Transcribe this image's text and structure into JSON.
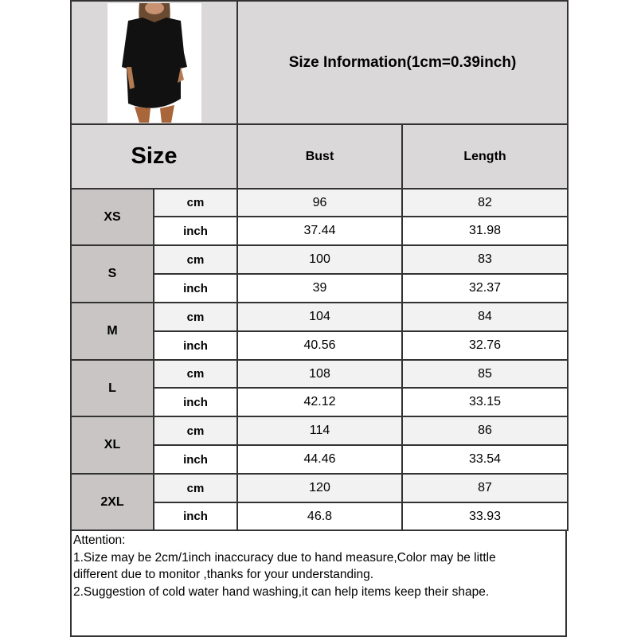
{
  "header": {
    "title": "Size Information(1cm=0.39inch)",
    "product_image": "black-oversized-tshirt-dress-photo"
  },
  "columns": {
    "size": "Size",
    "bust": "Bust",
    "length": "Length"
  },
  "rows": [
    {
      "size": "XS",
      "cm_label": "cm",
      "inch_label": "inch",
      "bust_cm": "96",
      "length_cm": "82",
      "bust_inch": "37.44",
      "length_inch": "31.98"
    },
    {
      "size": "S",
      "cm_label": "cm",
      "inch_label": "inch",
      "bust_cm": "100",
      "length_cm": "83",
      "bust_inch": "39",
      "length_inch": "32.37"
    },
    {
      "size": "M",
      "cm_label": "cm",
      "inch_label": "inch",
      "bust_cm": "104",
      "length_cm": "84",
      "bust_inch": "40.56",
      "length_inch": "32.76"
    },
    {
      "size": "L",
      "cm_label": "cm",
      "inch_label": "inch",
      "bust_cm": "108",
      "length_cm": "85",
      "bust_inch": "42.12",
      "length_inch": "33.15"
    },
    {
      "size": "XL",
      "cm_label": "cm",
      "inch_label": "inch",
      "bust_cm": "114",
      "length_cm": "86",
      "bust_inch": "44.46",
      "length_inch": "33.54"
    },
    {
      "size": "2XL",
      "cm_label": "cm",
      "inch_label": "inch",
      "bust_cm": "120",
      "length_cm": "87",
      "bust_inch": "46.8",
      "length_inch": "33.93"
    }
  ],
  "notes": [
    "Attention:",
    "1.Size may be 2cm/1inch inaccuracy due to hand measure,Color may be little",
    "different due to monitor ,thanks for your understanding.",
    "2.Suggestion of cold water hand washing,it can help items keep their shape."
  ],
  "colors": {
    "header_bg": "#dad8d9",
    "size_cell_bg": "#c9c5c5",
    "cm_row_bg": "#f2f2f2",
    "border": "#333333"
  }
}
